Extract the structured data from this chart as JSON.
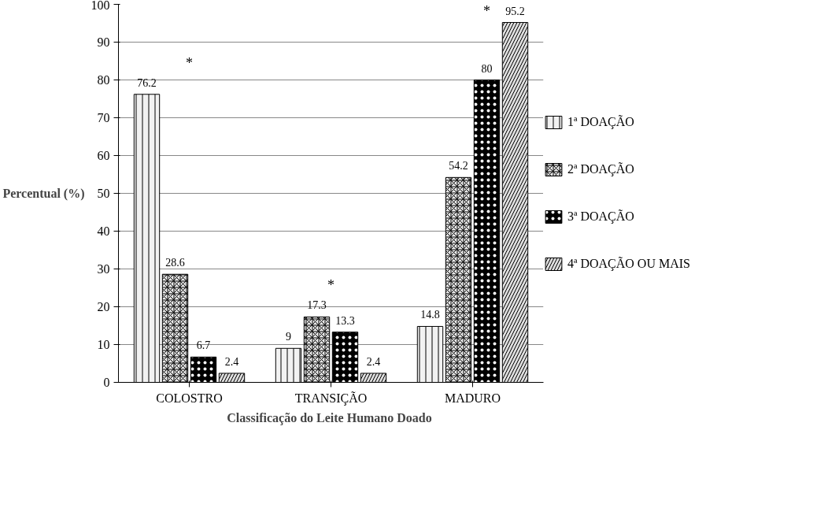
{
  "chart_data": {
    "type": "bar",
    "xlabel": "Classificação do Leite Humano  Doado",
    "ylabel": "Percentual (%)",
    "categories": [
      "COLOSTRO",
      "TRANSIÇÃO",
      "MADURO"
    ],
    "series": [
      {
        "name": "1ª DOAÇÃO",
        "color": "#f2f2f2",
        "values": [
          76.2,
          9,
          14.8
        ]
      },
      {
        "name": "2ª DOAÇÃO",
        "color": "#e6e6e6",
        "values": [
          28.6,
          17.3,
          54.2
        ]
      },
      {
        "name": "3ª DOAÇÃO",
        "color": "#000000",
        "values": [
          6.7,
          13.3,
          80
        ]
      },
      {
        "name": "4ª DOAÇÃO OU MAIS",
        "color": "#dddddd",
        "values": [
          2.4,
          2.4,
          95.2
        ]
      }
    ],
    "ylim": [
      0,
      100
    ],
    "yticks": [
      0,
      10,
      20,
      30,
      40,
      50,
      60,
      70,
      80,
      90,
      100
    ],
    "grid": "y",
    "legend": "right",
    "data_labels": true,
    "annotations": [
      "*",
      "*",
      "*"
    ]
  }
}
